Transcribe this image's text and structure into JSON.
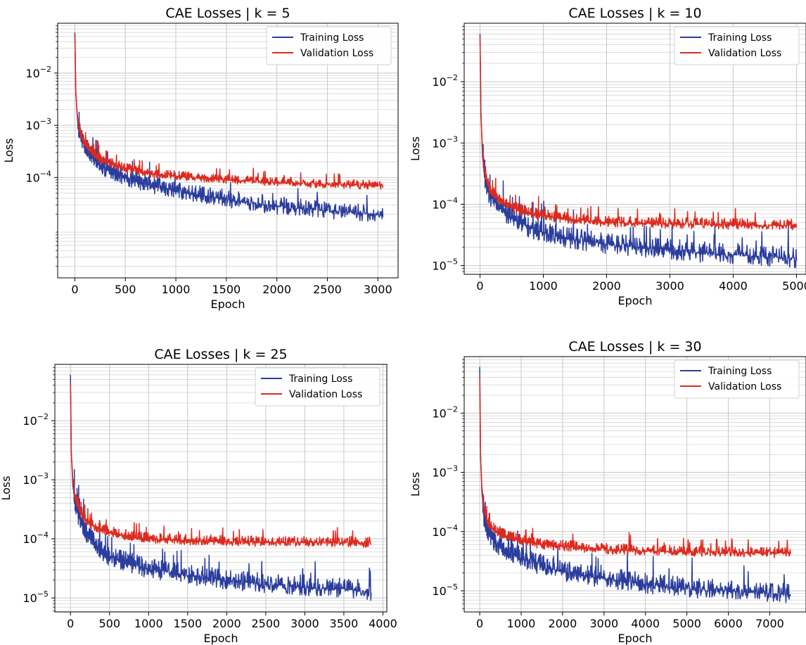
{
  "colors": {
    "training": "#2b3d9c",
    "validation": "#dd2a1e",
    "grid": "#c8c8c8"
  },
  "chart_data": [
    {
      "type": "line",
      "title": "CAE Losses | k = 5",
      "xlabel": "Epoch",
      "ylabel": "Loss",
      "yscale": "log",
      "xlim": [
        -170,
        3200
      ],
      "ylim": [
        1.2e-06,
        0.09
      ],
      "xticks": [
        0,
        500,
        1000,
        1500,
        2000,
        2500,
        3000
      ],
      "yticks": [
        {
          "v": 0.01,
          "base": "10",
          "exp": "−2"
        },
        {
          "v": 0.001,
          "base": "10",
          "exp": "−3"
        },
        {
          "v": 0.0001,
          "base": "10",
          "exp": "−4"
        }
      ],
      "grid": true,
      "legend_position": "top-right",
      "series": [
        {
          "name": "Training Loss",
          "x": [
            0,
            10,
            30,
            60,
            100,
            200,
            300,
            500,
            750,
            1000,
            1500,
            2000,
            2500,
            3000,
            3050
          ],
          "y": [
            0.06,
            0.004,
            0.001,
            0.0006,
            0.0004,
            0.00022,
            0.00015,
            0.0001,
            7e-05,
            5.5e-05,
            3.8e-05,
            2.8e-05,
            2.3e-05,
            2e-05,
            2e-05
          ]
        },
        {
          "name": "Validation Loss",
          "x": [
            0,
            10,
            30,
            60,
            100,
            200,
            300,
            500,
            750,
            1000,
            1500,
            2000,
            2500,
            3000,
            3050
          ],
          "y": [
            0.055,
            0.004,
            0.0012,
            0.00065,
            0.00045,
            0.00026,
            0.0002,
            0.00015,
            0.00012,
            0.000105,
            9e-05,
            8e-05,
            7.4e-05,
            7e-05,
            7e-05
          ]
        }
      ]
    },
    {
      "type": "line",
      "title": "CAE Losses | k = 10",
      "xlabel": "Epoch",
      "ylabel": "Loss",
      "yscale": "log",
      "xlim": [
        -250,
        5150
      ],
      "ylim": [
        7.2e-06,
        0.09
      ],
      "xticks": [
        0,
        1000,
        2000,
        3000,
        4000,
        5000
      ],
      "yticks": [
        {
          "v": 0.01,
          "base": "10",
          "exp": "−2"
        },
        {
          "v": 0.001,
          "base": "10",
          "exp": "−3"
        },
        {
          "v": 0.0001,
          "base": "10",
          "exp": "−4"
        },
        {
          "v": 1e-05,
          "base": "10",
          "exp": "−5"
        }
      ],
      "grid": true,
      "legend_position": "top-right",
      "series": [
        {
          "name": "Training Loss",
          "x": [
            0,
            15,
            40,
            80,
            150,
            300,
            500,
            800,
            1200,
            1600,
            2000,
            2500,
            3000,
            3500,
            4000,
            4500,
            5000
          ],
          "y": [
            0.06,
            0.003,
            0.0006,
            0.00025,
            0.00014,
            9e-05,
            6e-05,
            4e-05,
            3e-05,
            2.5e-05,
            2.2e-05,
            2e-05,
            1.8e-05,
            1.6e-05,
            1.5e-05,
            1.4e-05,
            1.3e-05
          ]
        },
        {
          "name": "Validation Loss",
          "x": [
            0,
            15,
            40,
            80,
            150,
            300,
            500,
            800,
            1200,
            1600,
            2000,
            2500,
            3000,
            3500,
            4000,
            4500,
            5000
          ],
          "y": [
            0.055,
            0.003,
            0.0007,
            0.0003,
            0.00018,
            0.00012,
            9e-05,
            7e-05,
            6e-05,
            5.5e-05,
            5e-05,
            4.9e-05,
            4.8e-05,
            4.7e-05,
            4.6e-05,
            4.5e-05,
            4.5e-05
          ]
        }
      ]
    },
    {
      "type": "line",
      "title": "CAE Losses | k = 25",
      "xlabel": "Epoch",
      "ylabel": "Loss",
      "yscale": "log",
      "xlim": [
        -200,
        4050
      ],
      "ylim": [
        5.8e-06,
        0.09
      ],
      "xticks": [
        0,
        500,
        1000,
        1500,
        2000,
        2500,
        3000,
        3500,
        4000
      ],
      "yticks": [
        {
          "v": 0.01,
          "base": "10",
          "exp": "−2"
        },
        {
          "v": 0.001,
          "base": "10",
          "exp": "−3"
        },
        {
          "v": 0.0001,
          "base": "10",
          "exp": "−4"
        },
        {
          "v": 1e-05,
          "base": "10",
          "exp": "−5"
        }
      ],
      "grid": true,
      "legend_position": "top-right",
      "series": [
        {
          "name": "Training Loss",
          "x": [
            0,
            10,
            30,
            60,
            100,
            200,
            350,
            500,
            750,
            1000,
            1500,
            2000,
            2500,
            3000,
            3500,
            3850
          ],
          "y": [
            0.06,
            0.003,
            0.0008,
            0.0004,
            0.00025,
            0.00012,
            7e-05,
            5e-05,
            3.8e-05,
            3.1e-05,
            2.4e-05,
            2e-05,
            1.7e-05,
            1.5e-05,
            1.4e-05,
            1.3e-05
          ]
        },
        {
          "name": "Validation Loss",
          "x": [
            0,
            10,
            30,
            60,
            100,
            200,
            350,
            500,
            750,
            1000,
            1500,
            2000,
            2500,
            3000,
            3500,
            3850
          ],
          "y": [
            0.04,
            0.003,
            0.001,
            0.0005,
            0.00035,
            0.0002,
            0.00015,
            0.00013,
            0.00011,
            0.0001,
            9.4e-05,
            9e-05,
            8.8e-05,
            8.7e-05,
            8.6e-05,
            8.5e-05
          ]
        }
      ]
    },
    {
      "type": "line",
      "title": "CAE Losses | k = 30",
      "xlabel": "Epoch",
      "ylabel": "Loss",
      "yscale": "log",
      "xlim": [
        -375,
        7875
      ],
      "ylim": [
        4.4e-06,
        0.09
      ],
      "xticks": [
        0,
        1000,
        2000,
        3000,
        4000,
        5000,
        6000,
        7000
      ],
      "yticks": [
        {
          "v": 0.01,
          "base": "10",
          "exp": "−2"
        },
        {
          "v": 0.001,
          "base": "10",
          "exp": "−3"
        },
        {
          "v": 0.0001,
          "base": "10",
          "exp": "−4"
        },
        {
          "v": 1e-05,
          "base": "10",
          "exp": "−5"
        }
      ],
      "grid": true,
      "legend_position": "top-right",
      "series": [
        {
          "name": "Training Loss",
          "x": [
            0,
            20,
            50,
            100,
            200,
            400,
            700,
            1000,
            1500,
            2000,
            3000,
            4000,
            5000,
            6000,
            7000,
            7500
          ],
          "y": [
            0.06,
            0.002,
            0.0005,
            0.00018,
            0.0001,
            6e-05,
            4.5e-05,
            3.5e-05,
            2.6e-05,
            2.1e-05,
            1.6e-05,
            1.3e-05,
            1.1e-05,
            1e-05,
            9e-06,
            8.5e-06
          ]
        },
        {
          "name": "Validation Loss",
          "x": [
            0,
            20,
            50,
            100,
            200,
            400,
            700,
            1000,
            1500,
            2000,
            3000,
            4000,
            5000,
            6000,
            7000,
            7500
          ],
          "y": [
            0.04,
            0.002,
            0.0006,
            0.00025,
            0.00014,
            0.0001,
            8e-05,
            7e-05,
            6e-05,
            5.6e-05,
            5e-05,
            4.7e-05,
            4.5e-05,
            4.4e-05,
            4.3e-05,
            4.3e-05
          ]
        }
      ]
    }
  ]
}
